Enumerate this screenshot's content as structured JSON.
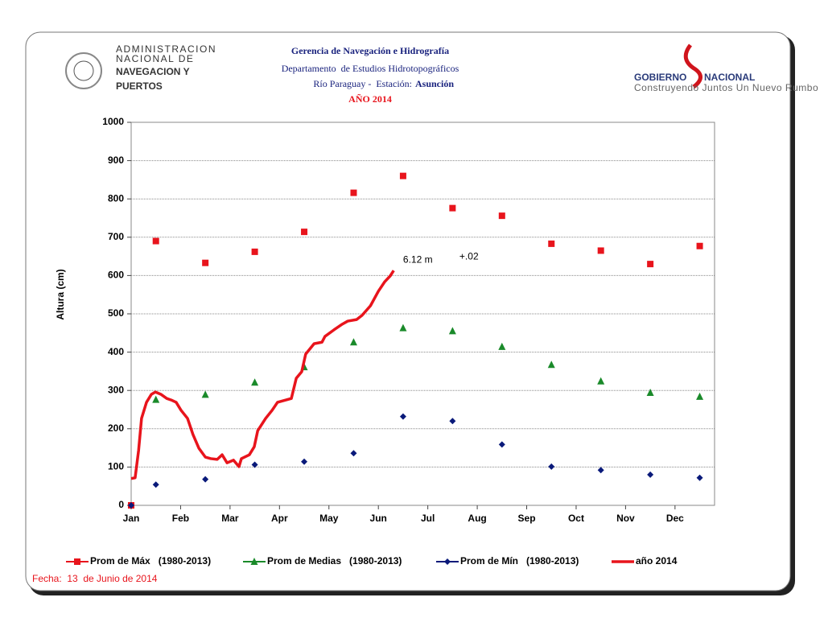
{
  "header": {
    "left_logo": [
      "ADMINISTRACION",
      "NACIONAL DE",
      "NAVEGACION Y",
      "PUERTOS"
    ],
    "right_logo": {
      "name": "GOBIERNO",
      "name2": "NACIONAL",
      "slogan": "Construyendo Juntos Un Nuevo Rumbo"
    },
    "title": "Gerencia de Navegación e Hidrografía",
    "subtitle": "Departamento  de Estudios Hidrotopográficos",
    "station": "Río Paraguay -  Estación:",
    "station_name": "Asunción",
    "year": "AÑO 2014"
  },
  "footer": "Fecha:  13  de Junio de 2014",
  "chart_data": {
    "type": "line",
    "ylabel": "Altura (cm)",
    "xlim": [
      0,
      11.8
    ],
    "xticks": [
      {
        "value": 0,
        "label": "Jan"
      },
      {
        "value": 1,
        "label": "Feb"
      },
      {
        "value": 2,
        "label": "Mar"
      },
      {
        "value": 3,
        "label": "Apr"
      },
      {
        "value": 4,
        "label": "May"
      },
      {
        "value": 5,
        "label": "Jun"
      },
      {
        "value": 6,
        "label": "Jul"
      },
      {
        "value": 7,
        "label": "Aug"
      },
      {
        "value": 8,
        "label": "Sep"
      },
      {
        "value": 9,
        "label": "Oct"
      },
      {
        "value": 10,
        "label": "Nov"
      },
      {
        "value": 11,
        "label": "Dec"
      }
    ],
    "ylim": [
      0,
      1000
    ],
    "yticks": [
      0,
      100,
      200,
      300,
      400,
      500,
      600,
      700,
      800,
      900,
      1000
    ],
    "grid": true,
    "annotation": {
      "text": "6.12 m",
      "sup": "+.02",
      "x": 5.5,
      "y": 640
    },
    "series": [
      {
        "name": "Prom de Máx   (1980-2013)",
        "color": "#e8141c",
        "marker": "square",
        "line": false,
        "x": [
          0,
          0.5,
          1.5,
          2.5,
          3.5,
          4.5,
          5.5,
          6.5,
          7.5,
          8.5,
          9.5,
          10.5,
          11.5
        ],
        "values": [
          0,
          690,
          633,
          662,
          714,
          816,
          860,
          776,
          756,
          683,
          665,
          630,
          677
        ]
      },
      {
        "name": "Prom de Medias   (1980-2013)",
        "color": "#1a8a2a",
        "marker": "triangle",
        "line": false,
        "x": [
          0.5,
          1.5,
          2.5,
          3.5,
          4.5,
          5.5,
          6.5,
          7.5,
          8.5,
          9.5,
          10.5,
          11.5
        ],
        "values": [
          276,
          289,
          321,
          361,
          426,
          463,
          455,
          414,
          367,
          324,
          294,
          284
        ]
      },
      {
        "name": "Prom de Mín   (1980-2013)",
        "color": "#0a1a7a",
        "marker": "diamond",
        "line": false,
        "x": [
          0,
          0.5,
          1.5,
          2.5,
          3.5,
          4.5,
          5.5,
          6.5,
          7.5,
          8.5,
          9.5,
          10.5,
          11.5
        ],
        "values": [
          0,
          54,
          68,
          106,
          114,
          136,
          232,
          220,
          159,
          101,
          92,
          80,
          72
        ]
      },
      {
        "name": "año 2014",
        "color": "#e8141c",
        "marker": "none",
        "line": true,
        "x": [
          0,
          0.08,
          0.15,
          0.21,
          0.31,
          0.41,
          0.49,
          0.6,
          0.72,
          0.81,
          0.91,
          1.01,
          1.14,
          1.25,
          1.37,
          1.5,
          1.61,
          1.74,
          1.84,
          1.94,
          2.07,
          2.18,
          2.23,
          2.39,
          2.49,
          2.56,
          2.72,
          2.85,
          2.96,
          3.13,
          3.24,
          3.34,
          3.45,
          3.53,
          3.7,
          3.86,
          3.92,
          4.1,
          4.27,
          4.38,
          4.56,
          4.67,
          4.84,
          5.0,
          5.13,
          5.24,
          5.31
        ],
        "values": [
          70,
          72,
          143,
          227,
          269,
          290,
          296,
          290,
          279,
          275,
          269,
          248,
          227,
          185,
          149,
          126,
          122,
          120,
          132,
          111,
          118,
          101,
          122,
          132,
          153,
          195,
          227,
          248,
          269,
          275,
          279,
          332,
          349,
          395,
          422,
          426,
          441,
          458,
          473,
          481,
          485,
          496,
          521,
          559,
          584,
          599,
          613
        ]
      }
    ]
  }
}
